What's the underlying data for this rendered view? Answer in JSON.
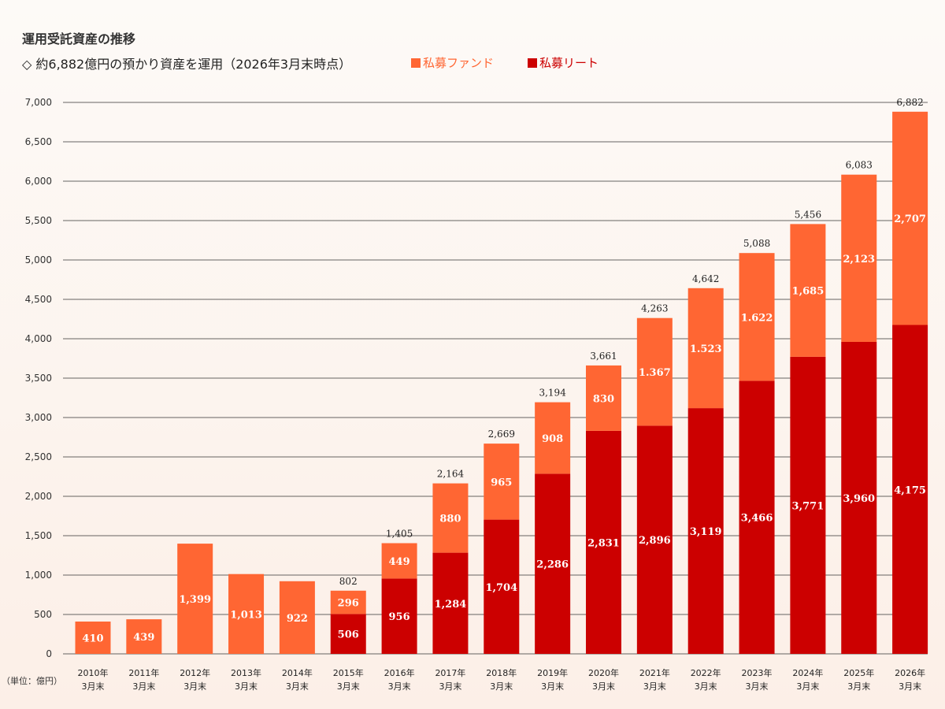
{
  "title": "運用受託資産の推移",
  "subtitle": "◇ 約6,882億円の預かり資産を運用（2026年3月末時点）",
  "unit_label": "（単位：億円）",
  "colors": {
    "funds": "#ff6633",
    "reit": "#cc0000",
    "grid": "#333333",
    "total_label": "#222222",
    "bar_label": "#ffffff"
  },
  "chart_data": {
    "type": "bar",
    "stacked": true,
    "categories": [
      [
        "2010年",
        "3月末"
      ],
      [
        "2011年",
        "3月末"
      ],
      [
        "2012年",
        "3月末"
      ],
      [
        "2013年",
        "3月末"
      ],
      [
        "2014年",
        "3月末"
      ],
      [
        "2015年",
        "3月末"
      ],
      [
        "2016年",
        "3月末"
      ],
      [
        "2017年",
        "3月末"
      ],
      [
        "2018年",
        "3月末"
      ],
      [
        "2019年",
        "3月末"
      ],
      [
        "2020年",
        "3月末"
      ],
      [
        "2021年",
        "3月末"
      ],
      [
        "2022年",
        "3月末"
      ],
      [
        "2023年",
        "3月末"
      ],
      [
        "2024年",
        "3月末"
      ],
      [
        "2025年",
        "3月末"
      ],
      [
        "2026年",
        "3月末"
      ]
    ],
    "series": [
      {
        "name": "私募リート",
        "color": "#cc0000",
        "values": [
          0,
          0,
          0,
          0,
          0,
          506,
          956,
          1284,
          1704,
          2286,
          2831,
          2896,
          3119,
          3466,
          3771,
          3960,
          4175
        ],
        "labels": [
          "",
          "",
          "",
          "",
          "",
          "506",
          "956",
          "1,284",
          "1,704",
          "2,286",
          "2,831",
          "2,896",
          "3,119",
          "3,466",
          "3,771",
          "3,960",
          "4,175"
        ]
      },
      {
        "name": "私募ファンド",
        "color": "#ff6633",
        "values": [
          410,
          439,
          1399,
          1013,
          922,
          296,
          449,
          880,
          965,
          908,
          830,
          1367,
          1523,
          1622,
          1685,
          2123,
          2707
        ],
        "labels": [
          "410",
          "439",
          "1,399",
          "1,013",
          "922",
          "296",
          "449",
          "880",
          "965",
          "908",
          "830",
          "1.367",
          "1.523",
          "1.622",
          "1,685",
          "2,123",
          "2,707"
        ]
      }
    ],
    "totals": [
      "",
      "",
      "",
      "",
      "",
      "802",
      "1,405",
      "2,164",
      "2,669",
      "3,194",
      "3,661",
      "4,263",
      "4,642",
      "5,088",
      "5,456",
      "6,083",
      "6,882"
    ],
    "legend": [
      "私募ファンド",
      "私募リート"
    ],
    "legend_position": "top",
    "ylim": [
      0,
      7000
    ],
    "yticks": [
      0,
      500,
      1000,
      1500,
      2000,
      2500,
      3000,
      3500,
      4000,
      4500,
      5000,
      5500,
      6000,
      6500,
      7000
    ],
    "ytick_labels": [
      "0",
      "500",
      "1,000",
      "1,500",
      "2,000",
      "2,500",
      "3,000",
      "3,500",
      "4,000",
      "4,500",
      "5,000",
      "5,500",
      "6,000",
      "6,500",
      "7,000"
    ],
    "grid": true
  }
}
